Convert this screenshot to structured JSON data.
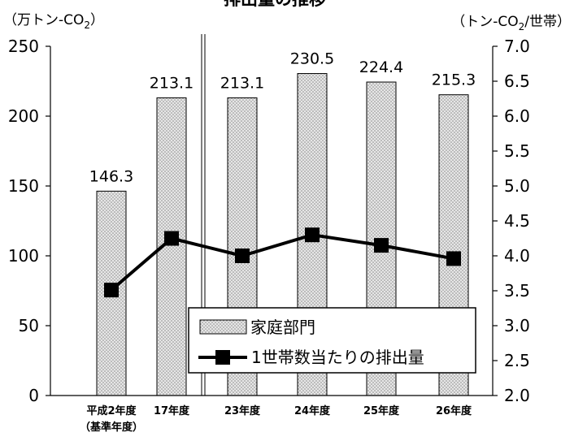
{
  "chart_data": {
    "type": "bar",
    "title": "排出量の推移",
    "left_unit": "（万トン-CO",
    "left_unit_sub": "2",
    "left_unit_close": "）",
    "right_unit": "（トン-CO",
    "right_unit_sub": "2",
    "right_unit_tail": "/世帯）",
    "categories": [
      {
        "line1": "平成2年度",
        "line2": "（基準年度）"
      },
      {
        "line1": "17年度",
        "line2": ""
      },
      {
        "line1": "23年度",
        "line2": ""
      },
      {
        "line1": "24年度",
        "line2": ""
      },
      {
        "line1": "25年度",
        "line2": ""
      },
      {
        "line1": "26年度",
        "line2": ""
      }
    ],
    "series": [
      {
        "name": "家庭部門",
        "kind": "bar",
        "axis": "left",
        "values": [
          146.3,
          213.1,
          213.1,
          230.5,
          224.4,
          215.3
        ],
        "labels": [
          "146.3",
          "213.1",
          "213.1",
          "230.5",
          "224.4",
          "215.3"
        ]
      },
      {
        "name": "1世帯数当たりの排出量",
        "kind": "line",
        "axis": "right",
        "values": [
          3.51,
          4.25,
          4.0,
          4.3,
          4.15,
          3.96
        ]
      }
    ],
    "y_left": {
      "min": 0,
      "max": 250,
      "ticks": [
        "0",
        "50",
        "100",
        "150",
        "200",
        "250"
      ]
    },
    "y_right": {
      "min": 2.0,
      "max": 7.0,
      "ticks": [
        "2.0",
        "2.5",
        "3.0",
        "3.5",
        "4.0",
        "4.5",
        "5.0",
        "5.5",
        "6.0",
        "6.5",
        "7.0"
      ]
    },
    "grid": false,
    "legend_position": "bottom-right",
    "base_year_divider": "between categories 2 and 3",
    "colors": {
      "bar_fill": "#e6e6e6",
      "bar_dots": "#8a8a8a",
      "line": "#000000"
    }
  }
}
